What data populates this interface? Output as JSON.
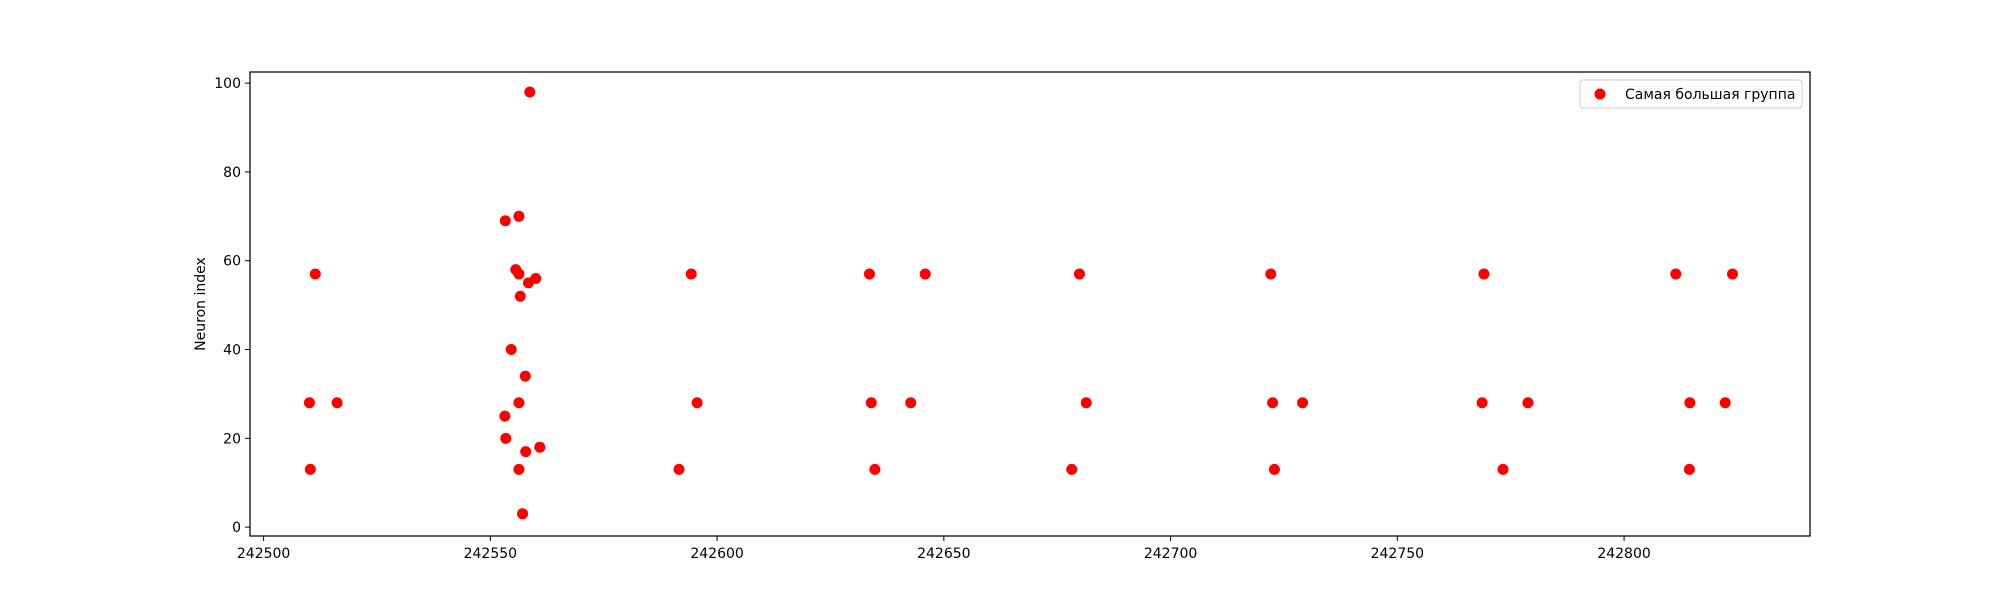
{
  "chart_data": {
    "type": "scatter",
    "title": "",
    "xlabel": "",
    "ylabel": "Neuron index",
    "xlim": [
      242497,
      242841
    ],
    "ylim": [
      -2,
      102.5
    ],
    "xticks": [
      242500,
      242550,
      242600,
      242650,
      242700,
      242750,
      242800
    ],
    "yticks": [
      0,
      20,
      40,
      60,
      80,
      100
    ],
    "grid": false,
    "legend_position": "top-right",
    "series": [
      {
        "name": "Самая большая группа",
        "color": "#ff0000",
        "marker": "circle",
        "points": [
          [
            242510.1,
            28
          ],
          [
            242510.3,
            13
          ],
          [
            242511.4,
            57
          ],
          [
            242516.2,
            28
          ],
          [
            242553.3,
            69
          ],
          [
            242553.2,
            25
          ],
          [
            242553.4,
            20
          ],
          [
            242554.6,
            40
          ],
          [
            242555.6,
            58
          ],
          [
            242556.3,
            57
          ],
          [
            242556.3,
            70
          ],
          [
            242556.6,
            52
          ],
          [
            242556.3,
            28
          ],
          [
            242556.3,
            13
          ],
          [
            242557.1,
            3
          ],
          [
            242557.7,
            34
          ],
          [
            242557.8,
            17
          ],
          [
            242558.4,
            55
          ],
          [
            242558.7,
            98
          ],
          [
            242560.0,
            56
          ],
          [
            242560.9,
            18
          ],
          [
            242591.6,
            13
          ],
          [
            242594.3,
            57
          ],
          [
            242595.6,
            28
          ],
          [
            242633.6,
            57
          ],
          [
            242634.0,
            28
          ],
          [
            242634.8,
            13
          ],
          [
            242642.7,
            28
          ],
          [
            242645.9,
            57
          ],
          [
            242678.2,
            13
          ],
          [
            242679.9,
            57
          ],
          [
            242681.4,
            28
          ],
          [
            242722.1,
            57
          ],
          [
            242722.5,
            28
          ],
          [
            242722.9,
            13
          ],
          [
            242729.1,
            28
          ],
          [
            242768.7,
            28
          ],
          [
            242769.1,
            57
          ],
          [
            242773.3,
            13
          ],
          [
            242778.8,
            28
          ],
          [
            242811.4,
            57
          ],
          [
            242814.4,
            13
          ],
          [
            242814.5,
            28
          ],
          [
            242822.3,
            28
          ],
          [
            242823.9,
            57
          ]
        ]
      }
    ]
  }
}
